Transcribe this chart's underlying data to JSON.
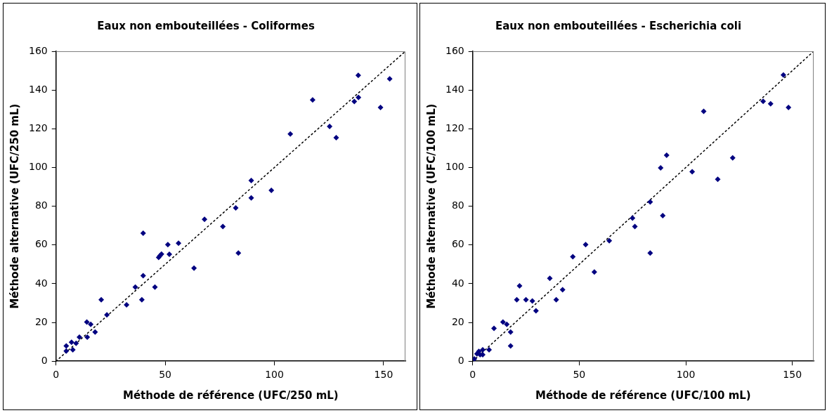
{
  "chart_data": [
    {
      "type": "scatter",
      "title": "Eaux non embouteillées - Coliformes",
      "xlabel": "Méthode de référence (UFC/250 mL)",
      "ylabel": "Méthode alternative (UFC/250 mL)",
      "xlim": [
        0,
        160
      ],
      "ylim": [
        0,
        160
      ],
      "xticks": [
        0,
        50,
        100,
        150
      ],
      "yticks": [
        0,
        20,
        40,
        60,
        80,
        100,
        120,
        140,
        160
      ],
      "grid": false,
      "legend": false,
      "marker": "diamond",
      "series": [
        {
          "type": "scatter",
          "color": "#000080",
          "x": [
            4.7,
            4.7,
            7.1,
            7.7,
            9.2,
            10.7,
            14.1,
            14.3,
            15.9,
            17.9,
            20.7,
            23.3,
            32.3,
            36.3,
            39.3,
            39.9,
            39.9,
            45.3,
            47.0,
            47.6,
            48.3,
            51.2,
            51.9,
            56.1,
            63.2,
            68.0,
            76.4,
            82.3,
            83.5,
            89.4,
            89.4,
            98.6,
            107.3,
            117.5,
            125.3,
            128.3,
            136.6,
            138.4,
            138.5,
            148.6,
            152.8
          ],
          "values": [
            7.9,
            5.2,
            9.8,
            5.9,
            9.2,
            12.4,
            20.2,
            12.4,
            19.0,
            15.0,
            31.7,
            23.9,
            29.1,
            38.2,
            31.7,
            44.1,
            66.1,
            38.2,
            53.6,
            54.5,
            55.3,
            60.2,
            55.2,
            60.9,
            48.0,
            73.2,
            69.5,
            79.1,
            55.8,
            93.3,
            84.3,
            88.2,
            117.3,
            134.9,
            121.2,
            115.4,
            134.1,
            147.6,
            136.2,
            131.0,
            145.8
          ]
        },
        {
          "type": "line",
          "color": "#000000",
          "line_style": "dotted",
          "marker": "none",
          "x": [
            0,
            160
          ],
          "values": [
            0,
            160
          ]
        }
      ]
    },
    {
      "type": "scatter",
      "title": "Eaux non embouteillées - Escherichia coli",
      "xlabel": "Méthode de référence (UFC/100 mL)",
      "ylabel": "Méthode alternative (UFC/100 mL)",
      "xlim": [
        0,
        160
      ],
      "ylim": [
        0,
        160
      ],
      "xticks": [
        0,
        50,
        100,
        150
      ],
      "yticks": [
        0,
        20,
        40,
        60,
        80,
        100,
        120,
        140,
        160
      ],
      "grid": false,
      "legend": false,
      "marker": "diamond",
      "series": [
        {
          "type": "scatter",
          "color": "#000080",
          "x": [
            0.8,
            2.0,
            2.9,
            3.5,
            4.7,
            4.7,
            7.7,
            10.0,
            14.2,
            16.0,
            17.8,
            17.8,
            20.7,
            22.0,
            25.0,
            28.0,
            29.7,
            36.2,
            39.2,
            42.2,
            47.0,
            53.0,
            57.1,
            64.1,
            75.0,
            76.1,
            83.3,
            83.3,
            88.2,
            89.2,
            91.0,
            103.0,
            108.4,
            115.0,
            122.0,
            136.3,
            139.8,
            145.8,
            148.2
          ],
          "values": [
            1.2,
            3.8,
            5.1,
            3.3,
            5.9,
            3.3,
            5.9,
            16.9,
            20.2,
            19.0,
            15.0,
            7.9,
            31.7,
            38.9,
            31.7,
            31.1,
            26.0,
            42.8,
            31.7,
            36.9,
            53.9,
            60.2,
            46.0,
            62.2,
            73.9,
            69.5,
            82.2,
            55.8,
            99.8,
            75.1,
            106.3,
            97.8,
            129.0,
            93.9,
            105.0,
            134.2,
            132.9,
            147.8,
            131.0
          ]
        },
        {
          "type": "line",
          "color": "#000000",
          "line_style": "dotted",
          "marker": "none",
          "x": [
            0,
            160
          ],
          "values": [
            0,
            160
          ]
        }
      ]
    }
  ]
}
